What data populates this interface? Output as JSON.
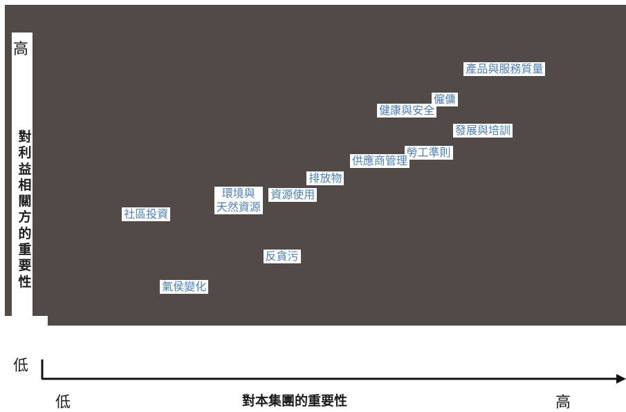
{
  "chart_data": {
    "type": "scatter",
    "title": "",
    "xlabel": "對本集團的重要性",
    "ylabel": "對利益相關方的重要性",
    "x_ticks": [
      "低",
      "高"
    ],
    "y_ticks": [
      "高",
      "低"
    ],
    "xlim": [
      0,
      10
    ],
    "ylim": [
      0,
      10
    ],
    "points": [
      {
        "label": "產品與服務質量",
        "x": 8.4,
        "y": 8.9
      },
      {
        "label": "僱傭",
        "x": 7.3,
        "y": 7.8
      },
      {
        "label": "健康與安全",
        "x": 6.6,
        "y": 7.4
      },
      {
        "label": "發展與培訓",
        "x": 8.0,
        "y": 6.7
      },
      {
        "label": "勞工準則",
        "x": 7.0,
        "y": 5.9
      },
      {
        "label": "供應商管理",
        "x": 6.1,
        "y": 5.6
      },
      {
        "label": "排放物",
        "x": 5.1,
        "y": 5.0
      },
      {
        "label": "資源使用",
        "x": 4.5,
        "y": 4.4
      },
      {
        "label": "環境與\n天然資源",
        "x": 3.5,
        "y": 4.2
      },
      {
        "label": "社區投資",
        "x": 1.8,
        "y": 3.7
      },
      {
        "label": "反貪污",
        "x": 4.3,
        "y": 2.2
      },
      {
        "label": "氣侯變化",
        "x": 2.5,
        "y": 1.1
      }
    ]
  },
  "colors": {
    "plot_background": "#524a47",
    "label_text": "#4d7fb6",
    "axis": "#111111"
  }
}
